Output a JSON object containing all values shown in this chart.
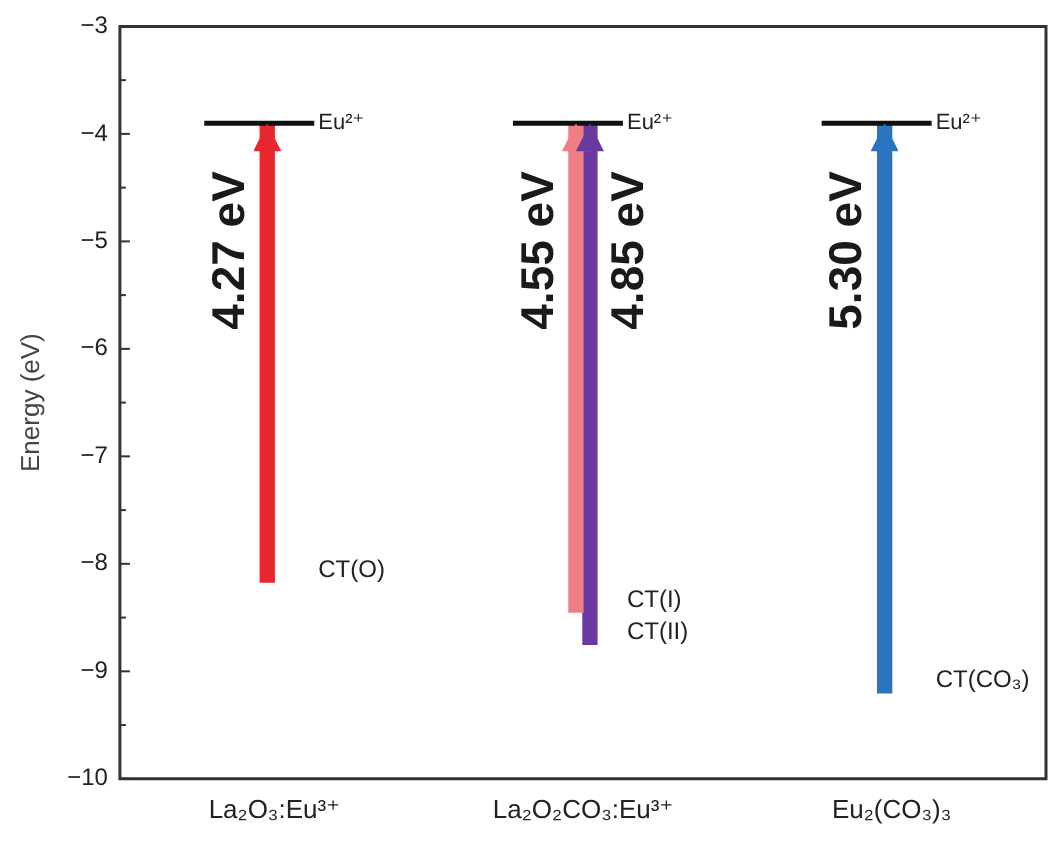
{
  "chart_data": {
    "type": "bar",
    "ylabel": "Energy (eV)",
    "categories": [
      "La₂O₃:Eu³⁺",
      "La₂O₂CO₃:Eu³⁺",
      "Eu₂(CO₃)₃"
    ],
    "series": [
      {
        "colors": [
          "#e8262d",
          "#f07c84",
          "#2a74c0"
        ],
        "values": [
          4.27,
          4.55,
          5.3
        ],
        "base": [
          -8.17,
          -8.45,
          -9.2
        ],
        "value_labels": [
          "4.27 eV",
          "4.55 eV",
          "5.30 eV"
        ]
      },
      {
        "color": "#6a3aa0",
        "values": [
          null,
          4.85,
          null
        ],
        "base": [
          null,
          -8.75,
          null
        ],
        "value_labels": [
          null,
          "4.85 eV",
          null
        ]
      }
    ],
    "ylim": [
      -10,
      -3
    ],
    "yticks": [
      -10,
      {
        "value": -9.5,
        "label": null
      },
      -9,
      {
        "value": -8.5,
        "label": null
      },
      -8,
      {
        "value": -7.5,
        "label": null
      },
      -7,
      {
        "value": -6.5,
        "label": null
      },
      -6,
      {
        "value": -5.5,
        "label": null
      },
      -5,
      {
        "value": -4.5,
        "label": null
      },
      -4,
      {
        "value": -3.5,
        "label": null
      },
      -3
    ],
    "grid": false,
    "annotations": [
      {
        "text": "Eu²⁺",
        "x": "La₂O₃:Eu³⁺",
        "y": -3.9
      },
      {
        "text": "Eu²⁺",
        "x": "La₂O₂CO₃:Eu³⁺",
        "y": -3.9
      },
      {
        "text": "Eu²⁺",
        "x": "Eu₂(CO₃)₃",
        "y": -3.9
      },
      {
        "text": "CT(O)",
        "x": "La₂O₃:Eu³⁺",
        "y": -8.17
      },
      {
        "text": "CT(I)",
        "x": "La₂O₂CO₃:Eu³⁺",
        "y": -8.45
      },
      {
        "text": "CT(II)",
        "x": "La₂O₂CO₃:Eu³⁺",
        "y": -8.75
      },
      {
        "text": "CT(CO₃)",
        "x": "Eu₂(CO₃)₃",
        "y": -9.2
      }
    ]
  }
}
